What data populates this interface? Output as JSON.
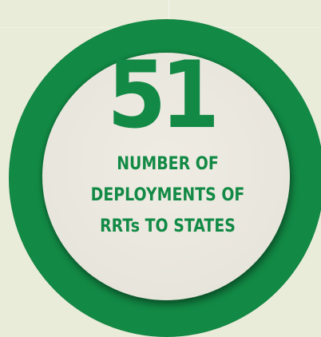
{
  "stat": {
    "number": "51",
    "caption_lines": [
      "NUMBER OF",
      "DEPLOYMENTS OF",
      "RRTs TO STATES"
    ]
  },
  "colors": {
    "background": "#e8ecd9",
    "ring": "#128a45",
    "disc": "#ebe8df",
    "text": "#128a45"
  }
}
